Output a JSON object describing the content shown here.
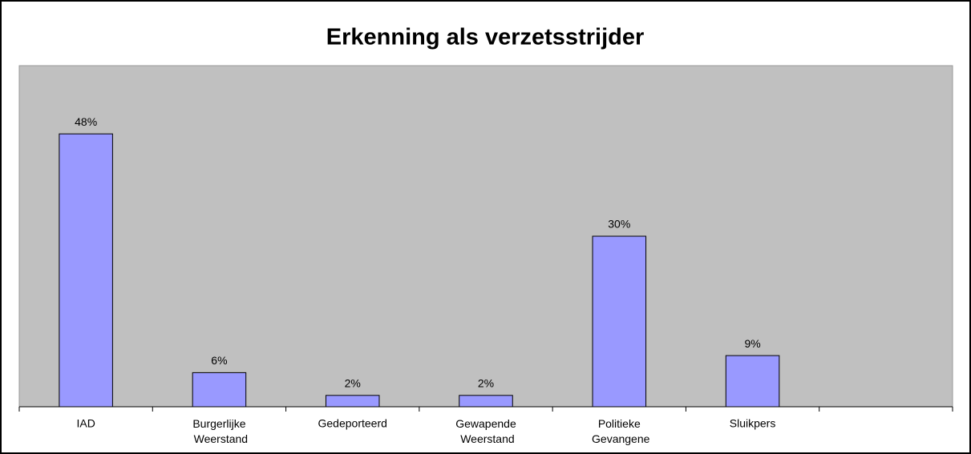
{
  "chart_data": {
    "type": "bar",
    "title": "Erkenning als verzetsstrijder",
    "categories": [
      "IAD",
      "Burgerlijke Weerstand",
      "Gedeporteerd",
      "Gewapende Weerstand",
      "Politieke Gevangene",
      "Sluikpers",
      null
    ],
    "values": [
      48,
      6,
      2,
      2,
      30,
      9,
      null
    ],
    "value_labels": [
      "48%",
      "6%",
      "2%",
      "2%",
      "30%",
      "9%",
      null
    ],
    "color": "#9999ff",
    "ylim": [
      0,
      60
    ],
    "plot_background": "#c0c0c0"
  }
}
